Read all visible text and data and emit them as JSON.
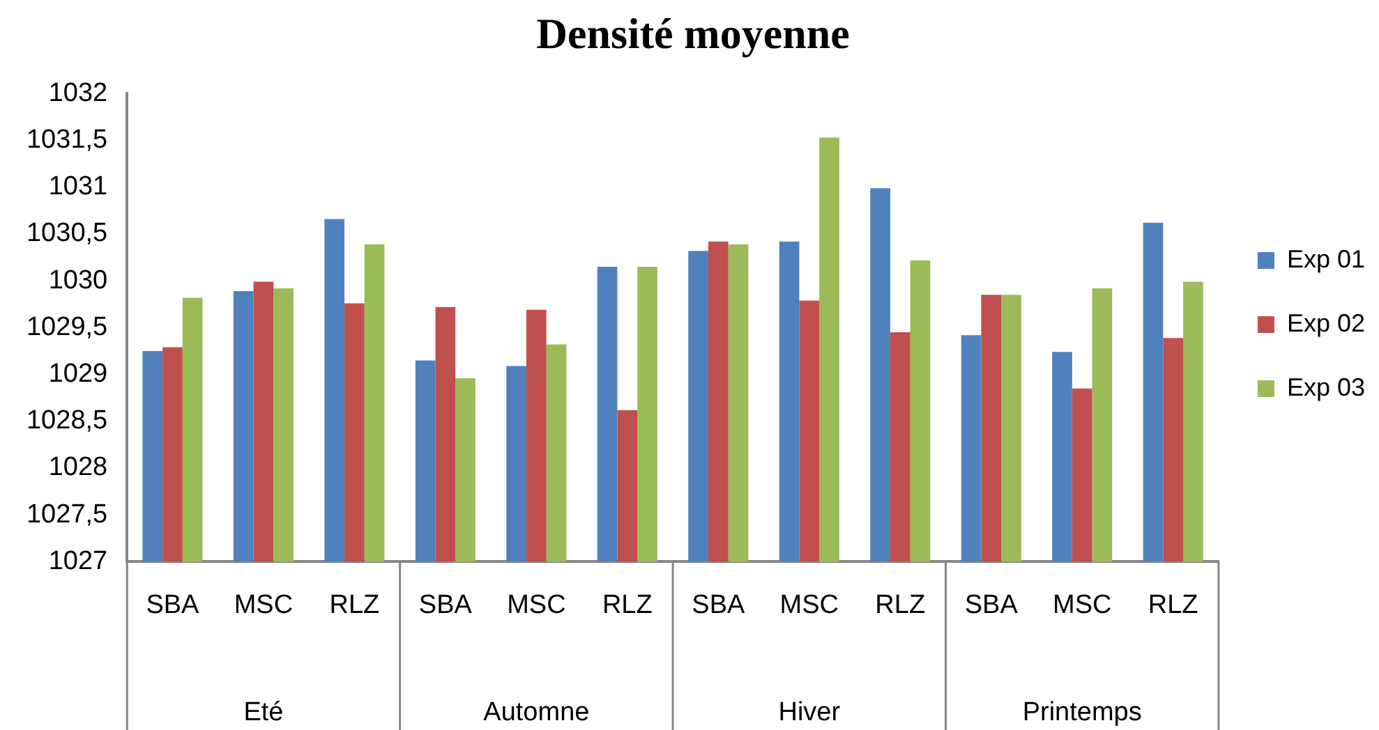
{
  "chart_data": {
    "type": "bar",
    "title": "Densité moyenne",
    "categories": [
      "SBA",
      "MSC",
      "RLZ",
      "SBA",
      "MSC",
      "RLZ",
      "SBA",
      "MSC",
      "RLZ",
      "SBA",
      "MSC",
      "RLZ"
    ],
    "annotations": [
      "Eté",
      "Automne",
      "Hiver",
      "Printemps"
    ],
    "series": [
      {
        "name": "Exp 01",
        "color": "#4f81bd",
        "values": [
          1029.25,
          1029.89,
          1030.66,
          1029.15,
          1029.09,
          1030.15,
          1030.32,
          1030.42,
          1030.99,
          1029.42,
          1029.24,
          1030.62
        ]
      },
      {
        "name": "Exp 02",
        "color": "#c0504d",
        "values": [
          1029.29,
          1029.99,
          1029.76,
          1029.72,
          1029.69,
          1028.62,
          1030.42,
          1029.79,
          1029.45,
          1029.85,
          1028.85,
          1029.39
        ]
      },
      {
        "name": "Exp 03",
        "color": "#9bbb59",
        "values": [
          1029.82,
          1029.92,
          1030.39,
          1028.96,
          1029.32,
          1030.15,
          1030.39,
          1031.53,
          1030.22,
          1029.85,
          1029.92,
          1029.99
        ]
      }
    ],
    "ylim": [
      1027,
      1032
    ],
    "yticks": [
      1027,
      {
        "value": 1027.5,
        "label": "1027,5"
      },
      1028,
      {
        "value": 1028.5,
        "label": "1028,5"
      },
      1029,
      {
        "value": 1029.5,
        "label": "1029,5"
      },
      1030,
      {
        "value": 1030.5,
        "label": "1030,5"
      },
      1031,
      {
        "value": 1031.5,
        "label": "1031,5"
      },
      1032
    ],
    "grid": false,
    "legend": "right"
  }
}
